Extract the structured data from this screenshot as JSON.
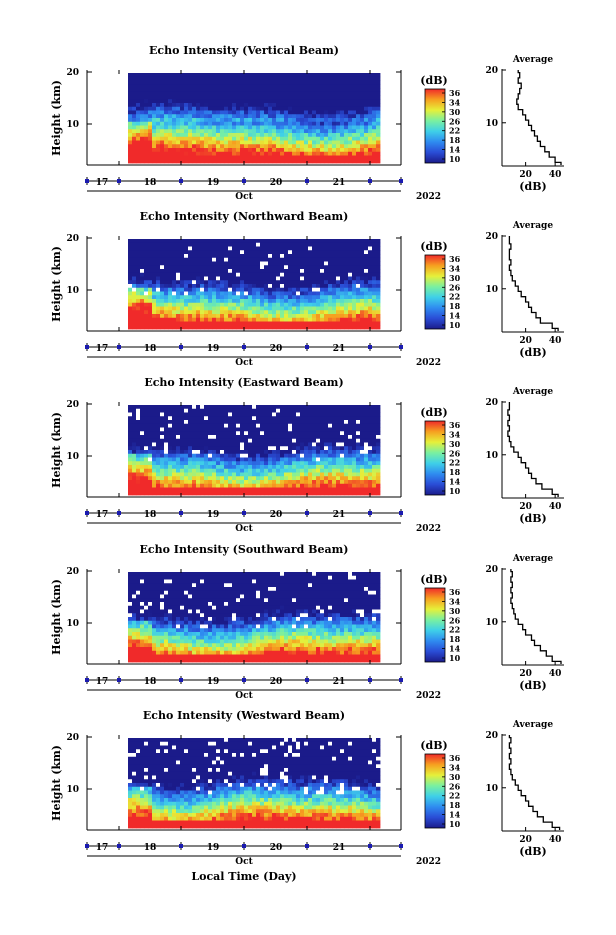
{
  "figure": {
    "xlabel": "Local Time (Day)",
    "month": "Oct",
    "year": "2022",
    "day_ticks": [
      "17",
      "18",
      "19",
      "20",
      "21"
    ]
  },
  "colorbar": {
    "unit": "(dB)",
    "ticks": [
      "36",
      "34",
      "30",
      "26",
      "22",
      "18",
      "14",
      "10"
    ],
    "stops": [
      "#1b1b8a",
      "#2a4dd6",
      "#2f8cf0",
      "#3fd0e8",
      "#7af0a0",
      "#e6f03a",
      "#f6a020",
      "#f02a2a"
    ]
  },
  "colors": {
    "no_data": "#ffffff",
    "line": "#000000",
    "time_marker": "#1a1ab0"
  },
  "chart_data": [
    {
      "type": "heatmap",
      "title": "Echo Intensity (Vertical Beam)",
      "ylabel": "Height (km)",
      "yticks": [
        "20",
        "10"
      ],
      "ylim": [
        2,
        20
      ],
      "xlim": [
        "2022-10-16 12:00",
        "2022-10-21 12:00"
      ],
      "data_start": "2022-10-17 05:00",
      "data_end": "2022-10-21 05:00",
      "value_range": [
        10,
        36
      ],
      "profile": {
        "title": "Average",
        "xlabel": "(dB)",
        "xticks": [
          "20",
          "40"
        ],
        "xlim": [
          4,
          46
        ],
        "height": [
          2,
          3,
          4,
          5,
          6,
          7,
          8,
          9,
          10,
          11,
          12,
          13,
          14,
          15,
          16,
          17,
          18,
          19,
          20
        ],
        "db": [
          44,
          40,
          36,
          33,
          30,
          28,
          26,
          24,
          22,
          20,
          18,
          15,
          14,
          15,
          16,
          17,
          15,
          16,
          15
        ]
      }
    },
    {
      "type": "heatmap",
      "title": "Echo Intensity (Northward Beam)",
      "ylabel": "Height (km)",
      "yticks": [
        "20",
        "10"
      ],
      "ylim": [
        2,
        20
      ],
      "xlim": [
        "2022-10-16 12:00",
        "2022-10-21 12:00"
      ],
      "data_start": "2022-10-17 05:00",
      "data_end": "2022-10-21 05:00",
      "value_range": [
        10,
        36
      ],
      "profile": {
        "title": "Average",
        "xlabel": "(dB)",
        "xticks": [
          "20",
          "40"
        ],
        "xlim": [
          4,
          46
        ],
        "height": [
          2,
          3,
          4,
          5,
          6,
          7,
          8,
          9,
          10,
          11,
          12,
          13,
          14,
          15,
          16,
          17,
          18,
          19,
          20
        ],
        "db": [
          42,
          38,
          30,
          27,
          24,
          22,
          20,
          17,
          15,
          13,
          11,
          10,
          9,
          10,
          9,
          9,
          10,
          9,
          9
        ]
      }
    },
    {
      "type": "heatmap",
      "title": "Echo Intensity (Eastward Beam)",
      "ylabel": "Height (km)",
      "yticks": [
        "20",
        "10"
      ],
      "ylim": [
        2,
        20
      ],
      "xlim": [
        "2022-10-16 12:00",
        "2022-10-21 12:00"
      ],
      "data_start": "2022-10-17 05:00",
      "data_end": "2022-10-21 05:00",
      "value_range": [
        10,
        36
      ],
      "profile": {
        "title": "Average",
        "xlabel": "(dB)",
        "xticks": [
          "20",
          "40"
        ],
        "xlim": [
          4,
          46
        ],
        "height": [
          2,
          3,
          4,
          5,
          6,
          7,
          8,
          9,
          10,
          11,
          12,
          13,
          14,
          15,
          16,
          17,
          18,
          19,
          20
        ],
        "db": [
          42,
          38,
          31,
          27,
          24,
          22,
          20,
          17,
          15,
          12,
          10,
          9,
          8,
          9,
          8,
          9,
          8,
          9,
          9
        ]
      }
    },
    {
      "type": "heatmap",
      "title": "Echo Intensity (Southward Beam)",
      "ylabel": "Height (km)",
      "yticks": [
        "20",
        "10"
      ],
      "ylim": [
        2,
        20
      ],
      "xlim": [
        "2022-10-16 12:00",
        "2022-10-21 12:00"
      ],
      "data_start": "2022-10-17 05:00",
      "data_end": "2022-10-21 05:00",
      "value_range": [
        10,
        36
      ],
      "profile": {
        "title": "Average",
        "xlabel": "(dB)",
        "xticks": [
          "20",
          "40"
        ],
        "xlim": [
          4,
          46
        ],
        "height": [
          2,
          3,
          4,
          5,
          6,
          7,
          8,
          9,
          10,
          11,
          12,
          13,
          14,
          15,
          16,
          17,
          18,
          19,
          20
        ],
        "db": [
          44,
          38,
          34,
          30,
          26,
          24,
          20,
          18,
          15,
          13,
          12,
          11,
          10,
          11,
          10,
          11,
          10,
          11,
          10
        ]
      }
    },
    {
      "type": "heatmap",
      "title": "Echo Intensity (Westward Beam)",
      "ylabel": "Height (km)",
      "yticks": [
        "20",
        "10"
      ],
      "ylim": [
        2,
        20
      ],
      "xlim": [
        "2022-10-16 12:00",
        "2022-10-21 12:00"
      ],
      "data_start": "2022-10-17 05:00",
      "data_end": "2022-10-21 05:00",
      "value_range": [
        10,
        36
      ],
      "profile": {
        "title": "Average",
        "xlabel": "(dB)",
        "xticks": [
          "20",
          "40"
        ],
        "xlim": [
          4,
          46
        ],
        "height": [
          2,
          3,
          4,
          5,
          6,
          7,
          8,
          9,
          10,
          11,
          12,
          13,
          14,
          15,
          16,
          17,
          18,
          19,
          20
        ],
        "db": [
          43,
          38,
          32,
          28,
          25,
          22,
          20,
          17,
          15,
          13,
          11,
          10,
          9,
          10,
          9,
          10,
          9,
          10,
          9
        ]
      }
    }
  ]
}
